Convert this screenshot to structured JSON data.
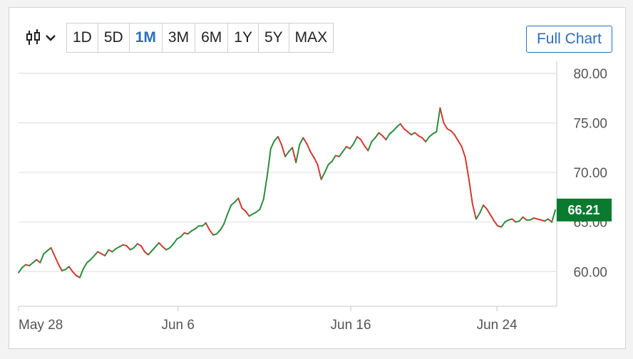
{
  "toolbar": {
    "chart_type_icon": "candlestick-icon",
    "dropdown_icon": "chevron-down-icon",
    "ranges": [
      "1D",
      "5D",
      "1M",
      "3M",
      "6M",
      "1Y",
      "5Y",
      "MAX"
    ],
    "active_range": "1M",
    "full_chart_label": "Full Chart"
  },
  "colors": {
    "up": "#2e8b3e",
    "down": "#d3392f",
    "accent": "#2a6ebb",
    "price_tag": "#0a7a2f"
  },
  "chart_data": {
    "type": "line",
    "title": "",
    "xlabel": "",
    "ylabel": "",
    "ylim": [
      56.5,
      81.5
    ],
    "yticks": [
      "80.00",
      "75.00",
      "70.00",
      "65.00",
      "60.00"
    ],
    "ytick_values": [
      80,
      75,
      70,
      65,
      60
    ],
    "xticks": [
      "May 28",
      "Jun 6",
      "Jun 16",
      "Jun 24"
    ],
    "xtick_positions": [
      0,
      12,
      25,
      36
    ],
    "x_range": [
      0,
      40.5
    ],
    "grid": true,
    "legend": "none",
    "last_price_label": "66.21",
    "last_price": 66.21,
    "series": [
      {
        "values": [
          59.9,
          60.4,
          60.7,
          60.6,
          60.9,
          61.2,
          60.9,
          61.8,
          62.1,
          62.4,
          61.6,
          60.8,
          60.1,
          60.2,
          60.5,
          60.0,
          59.6,
          59.4,
          60.3,
          60.9,
          61.2,
          61.6,
          62.0,
          61.8,
          61.6,
          62.2,
          62.0,
          62.3,
          62.5,
          62.7,
          62.6,
          62.2,
          62.4,
          62.8,
          62.6,
          62.0,
          61.7,
          62.1,
          62.5,
          62.9,
          62.5,
          62.2,
          62.4,
          62.8,
          63.3,
          63.5,
          63.9,
          63.8,
          64.1,
          64.3,
          64.6,
          64.6,
          64.9,
          64.2,
          63.7,
          63.8,
          64.2,
          64.8,
          65.8,
          66.7,
          67.0,
          67.4,
          66.4,
          66.1,
          65.6,
          65.8,
          66.0,
          66.3,
          67.3,
          69.6,
          72.4,
          73.2,
          73.6,
          72.8,
          71.6,
          72.1,
          72.5,
          71.0,
          72.8,
          73.5,
          72.9,
          72.1,
          71.5,
          70.8,
          69.3,
          70.0,
          70.8,
          71.1,
          71.7,
          71.6,
          72.1,
          72.6,
          72.4,
          72.9,
          73.6,
          73.3,
          72.7,
          72.2,
          73.1,
          73.5,
          74.0,
          73.7,
          73.3,
          73.9,
          74.2,
          74.6,
          74.9,
          74.4,
          74.1,
          73.8,
          74.0,
          73.7,
          73.5,
          73.1,
          73.6,
          73.9,
          74.1,
          76.5,
          75.0,
          74.4,
          74.2,
          73.8,
          73.2,
          72.6,
          71.5,
          69.3,
          66.8,
          65.3,
          65.9,
          66.7,
          66.3,
          65.7,
          65.1,
          64.6,
          64.5,
          65.0,
          65.2,
          65.3,
          65.0,
          65.1,
          65.5,
          65.2,
          65.2,
          65.4,
          65.3,
          65.2,
          65.1,
          65.3,
          65.0,
          66.21
        ]
      }
    ]
  }
}
